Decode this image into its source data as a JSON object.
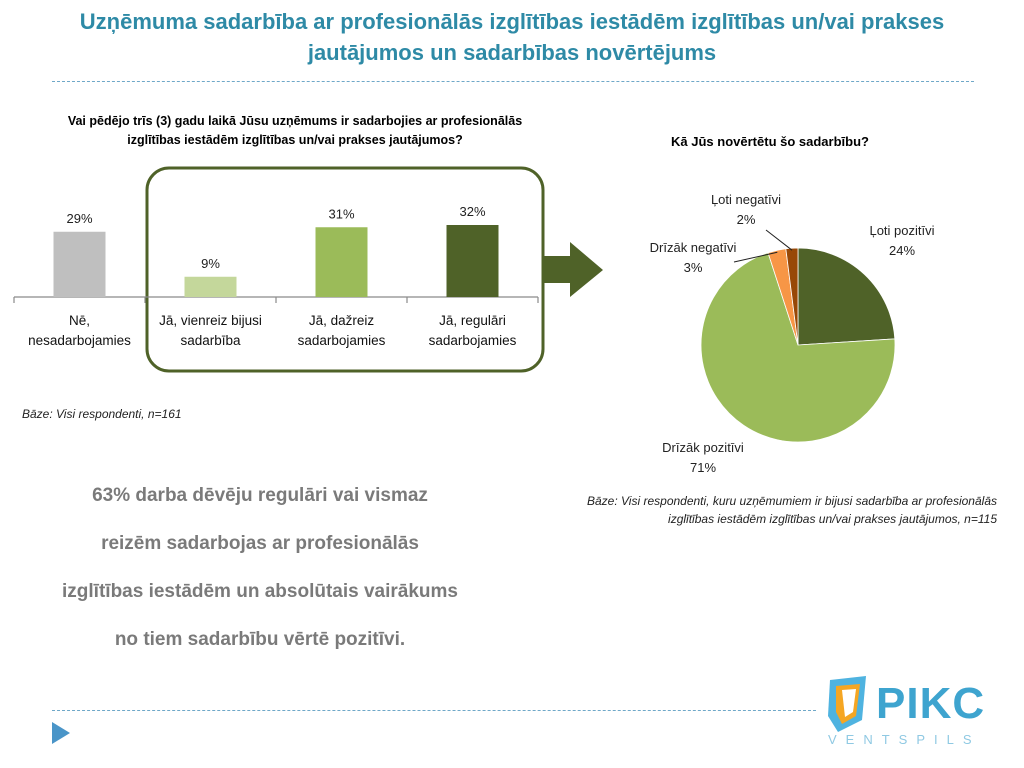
{
  "slide": {
    "title_line1": "Uzņēmuma sadarbība ar profesionālās izglītības iestādēm izglītības un/vai prakses",
    "title_line2": "jautājumos un sadarbības novērtējums",
    "conclusion_lines": [
      "63% darba dēvēju regulāri vai vismaz",
      "reizēm sadarbojas ar profesionālās",
      "izglītības iestādēm un absolūtais vairākums",
      "no tiem sadarbību vērtē pozitīvi."
    ],
    "logo_text": "PIKC",
    "logo_subtext": "VENTSPILS",
    "colors": {
      "title": "#2e8aa6",
      "accent_dark_green": "#4f6228"
    }
  },
  "chart_data": [
    {
      "type": "bar",
      "title_line1": "Vai pēdējo trīs (3) gadu laikā Jūsu uzņēmums ir sadarbojies ar profesionālās",
      "title_line2": "izglītības iestādēm izglītības un/vai prakses jautājumos?",
      "categories": [
        [
          "Nē,",
          "nesadarbojamies"
        ],
        [
          "Jā, vienreiz bijusi",
          "sadarbība"
        ],
        [
          "Jā, dažreiz",
          "sadarbojamies"
        ],
        [
          "Jā, regulāri",
          "sadarbojamies"
        ]
      ],
      "values": [
        29,
        9,
        31,
        32
      ],
      "value_labels": [
        "29%",
        "9%",
        "31%",
        "32%"
      ],
      "colors": [
        "#bfbfbf",
        "#c4d79b",
        "#9bbb59",
        "#4f6228"
      ],
      "ylim": [
        0,
        40
      ],
      "base_note": "Bāze: Visi respondenti, n=161"
    },
    {
      "type": "pie",
      "title": "Kā Jūs novērtētu šo sadarbību?",
      "slices": [
        {
          "label": "Ļoti pozitīvi",
          "value": 24,
          "value_label": "24%",
          "color": "#4f6228"
        },
        {
          "label": "Drīzāk pozitīvi",
          "value": 71,
          "value_label": "71%",
          "color": "#9bbb59"
        },
        {
          "label": "Drīzāk negatīvi",
          "value": 3,
          "value_label": "3%",
          "color": "#f79646"
        },
        {
          "label": "Ļoti negatīvi",
          "value": 2,
          "value_label": "2%",
          "color": "#984807"
        }
      ],
      "base_note_line1": "Bāze: Visi respondenti, kuru uzņēmumiem ir bijusi  sadarbība ar profesionālās",
      "base_note_line2": "izglītības iestādēm izglītības un/vai prakses jautājumos, n=115"
    }
  ]
}
